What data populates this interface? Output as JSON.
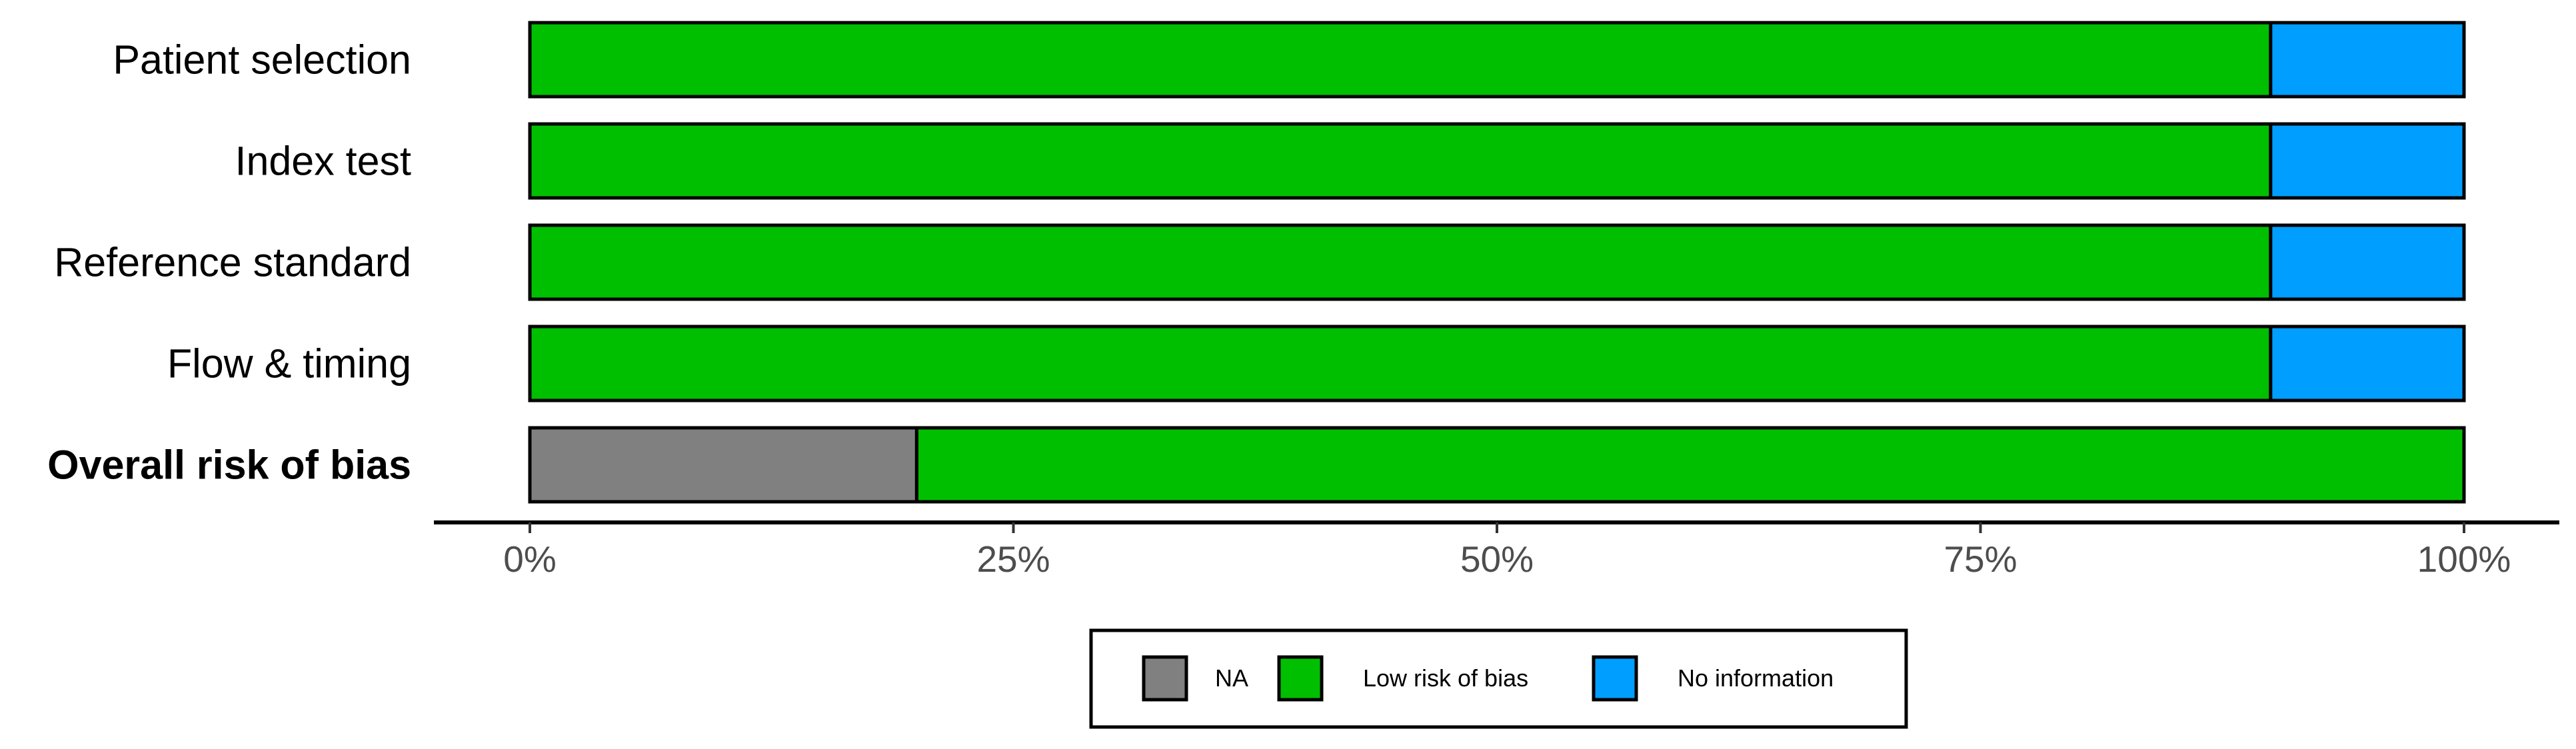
{
  "chart_data": {
    "type": "bar",
    "orientation": "horizontal",
    "stacked": true,
    "categories": [
      "Patient selection",
      "Index test",
      "Reference standard",
      "Flow & timing",
      "Overall risk of bias"
    ],
    "bold_categories": [
      "Overall risk of bias"
    ],
    "series": [
      {
        "name": "NA",
        "color": "#808080",
        "values": [
          0,
          0,
          0,
          0,
          20
        ]
      },
      {
        "name": "Low risk of bias",
        "color": "#00bf00",
        "values": [
          90,
          90,
          90,
          90,
          80
        ]
      },
      {
        "name": "No information",
        "color": "#009efe",
        "values": [
          10,
          10,
          10,
          10,
          0
        ]
      }
    ],
    "xlim": [
      0,
      100
    ],
    "x_ticks": [
      0,
      25,
      50,
      75,
      100
    ],
    "x_tick_labels": [
      "0%",
      "25%",
      "50%",
      "75%",
      "100%"
    ],
    "title": "",
    "xlabel": "",
    "ylabel": "",
    "grid": false,
    "legend_position": "bottom"
  }
}
